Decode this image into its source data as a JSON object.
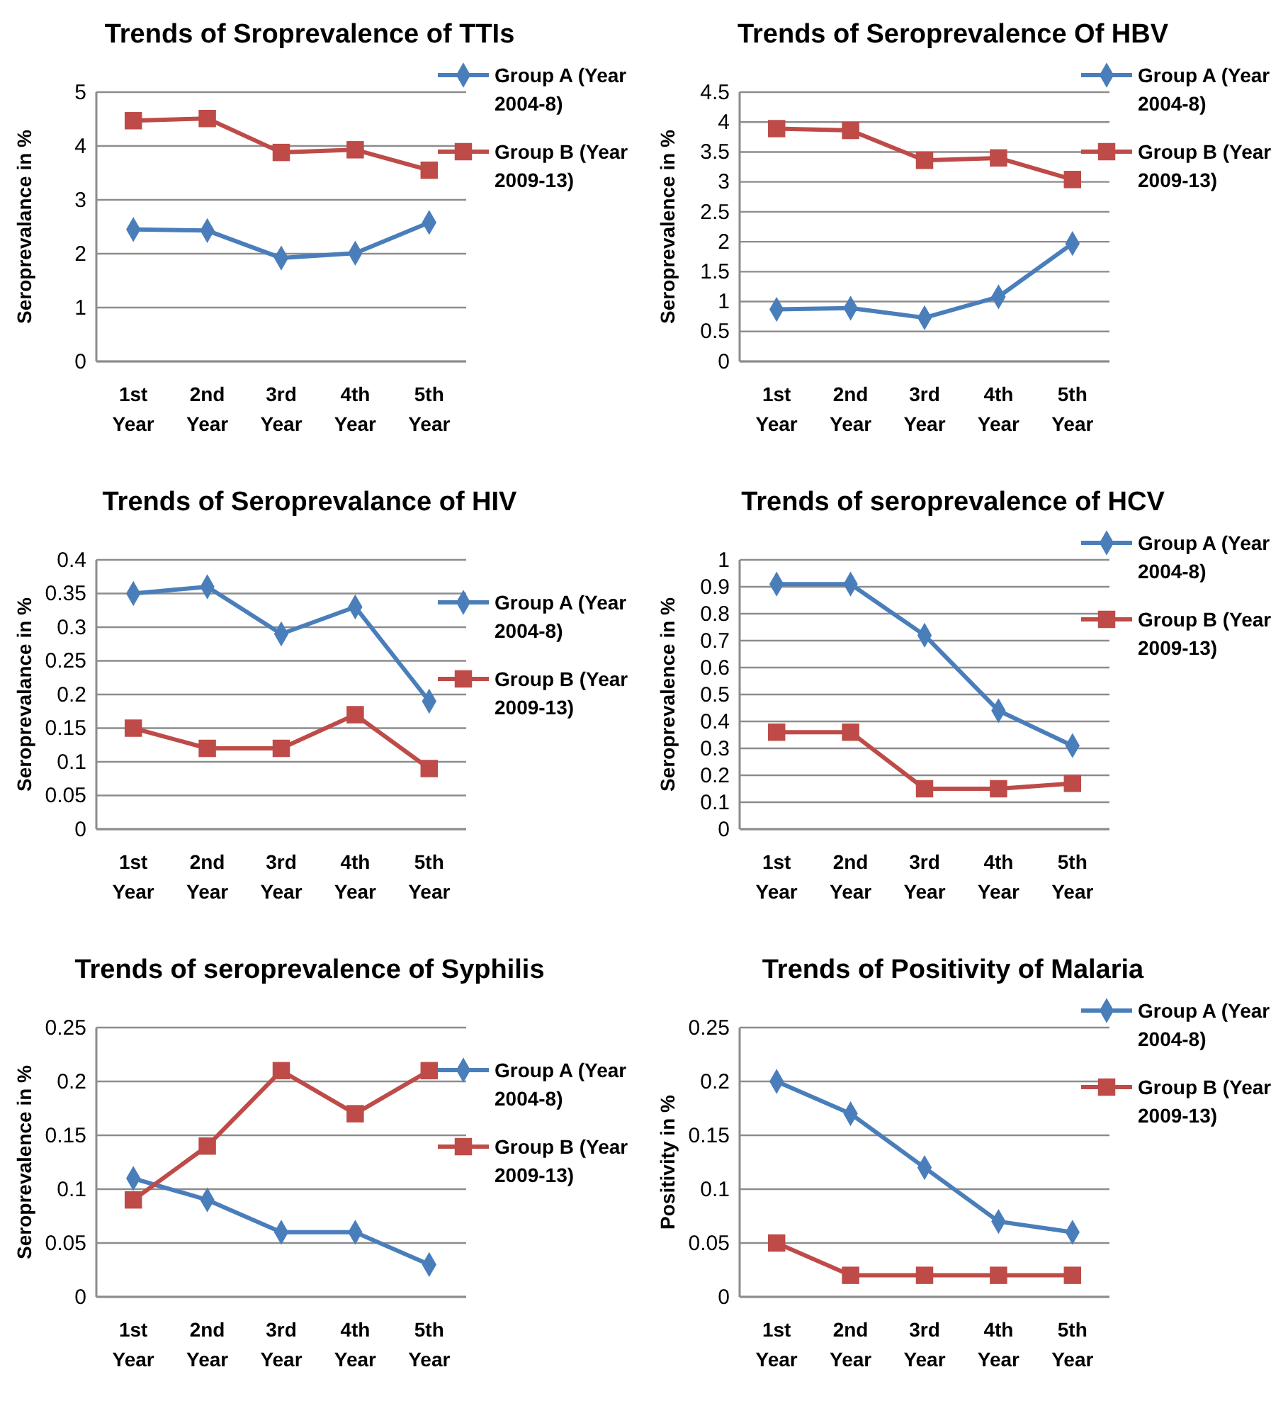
{
  "chart_data": [
    {
      "type": "line",
      "title": "Trends of Sroprevalence of TTIs",
      "ylabel": "Seroprevalance in %",
      "categories": [
        "1st Year",
        "2nd Year",
        "3rd Year",
        "4th Year",
        "5th Year"
      ],
      "ylim": [
        0,
        5
      ],
      "yticks": [
        0,
        1,
        2,
        3,
        4,
        5
      ],
      "grid": "y",
      "legend": "top right",
      "series": [
        {
          "name": "Group A (Year 2004-8)",
          "color": "#4a7ebb",
          "marker": "diamond",
          "values": [
            2.45,
            2.43,
            1.92,
            2.01,
            2.58
          ]
        },
        {
          "name": "Group B (Year 2009-13)",
          "color": "#be4b48",
          "marker": "square",
          "values": [
            4.47,
            4.51,
            3.88,
            3.93,
            3.55
          ]
        }
      ]
    },
    {
      "type": "line",
      "title": "Trends of Seroprevalence Of HBV",
      "ylabel": "Seroprevalence in %",
      "categories": [
        "1st Year",
        "2nd Year",
        "3rd Year",
        "4th Year",
        "5th Year"
      ],
      "ylim": [
        0,
        4.5
      ],
      "yticks": [
        0,
        0.5,
        1,
        1.5,
        2,
        2.5,
        3,
        3.5,
        4,
        4.5
      ],
      "grid": "y",
      "legend": "top right",
      "series": [
        {
          "name": "Group A (Year 2004-8)",
          "color": "#4a7ebb",
          "marker": "diamond",
          "values": [
            0.87,
            0.89,
            0.73,
            1.08,
            1.97
          ]
        },
        {
          "name": "Group B (Year 2009-13)",
          "color": "#be4b48",
          "marker": "square",
          "values": [
            3.89,
            3.86,
            3.36,
            3.4,
            3.04
          ]
        }
      ]
    },
    {
      "type": "line",
      "title": "Trends of Seroprevalance of HIV",
      "ylabel": "Seroprevalance in %",
      "categories": [
        "1st Year",
        "2nd Year",
        "3rd Year",
        "4th Year",
        "5th Year"
      ],
      "ylim": [
        0,
        0.4
      ],
      "yticks": [
        0,
        0.05,
        0.1,
        0.15,
        0.2,
        0.25,
        0.3,
        0.35,
        0.4
      ],
      "grid": "y",
      "legend": "right",
      "series": [
        {
          "name": "Group A (Year 2004-8)",
          "color": "#4a7ebb",
          "marker": "diamond",
          "values": [
            0.35,
            0.36,
            0.29,
            0.33,
            0.19
          ]
        },
        {
          "name": "Group B (Year 2009-13)",
          "color": "#be4b48",
          "marker": "square",
          "values": [
            0.15,
            0.12,
            0.12,
            0.17,
            0.09
          ]
        }
      ]
    },
    {
      "type": "line",
      "title": "Trends of seroprevalence of HCV",
      "ylabel": "Seroprevalence in %",
      "categories": [
        "1st Year",
        "2nd Year",
        "3rd Year",
        "4th Year",
        "5th Year"
      ],
      "ylim": [
        0,
        1
      ],
      "yticks": [
        0,
        0.1,
        0.2,
        0.3,
        0.4,
        0.5,
        0.6,
        0.7,
        0.8,
        0.9,
        1
      ],
      "grid": "y",
      "legend": "top right",
      "series": [
        {
          "name": "Group A (Year 2004-8)",
          "color": "#4a7ebb",
          "marker": "diamond",
          "values": [
            0.91,
            0.91,
            0.72,
            0.44,
            0.31
          ]
        },
        {
          "name": "Group B (Year 2009-13)",
          "color": "#be4b48",
          "marker": "square",
          "values": [
            0.36,
            0.36,
            0.15,
            0.15,
            0.17
          ]
        }
      ]
    },
    {
      "type": "line",
      "title": "Trends of seroprevalence of Syphilis",
      "ylabel": "Seroprevalence in %",
      "categories": [
        "1st Year",
        "2nd Year",
        "3rd Year",
        "4th Year",
        "5th Year"
      ],
      "ylim": [
        0,
        0.25
      ],
      "yticks": [
        0,
        0.05,
        0.1,
        0.15,
        0.2,
        0.25
      ],
      "grid": "y",
      "legend": "right",
      "series": [
        {
          "name": "Group A (Year 2004-8)",
          "color": "#4a7ebb",
          "marker": "diamond",
          "values": [
            0.11,
            0.09,
            0.06,
            0.06,
            0.03
          ]
        },
        {
          "name": "Group B (Year 2009-13)",
          "color": "#be4b48",
          "marker": "square",
          "values": [
            0.09,
            0.14,
            0.21,
            0.17,
            0.21
          ]
        }
      ]
    },
    {
      "type": "line",
      "title": "Trends of Positivity of Malaria",
      "ylabel": "Positivity in %",
      "categories": [
        "1st Year",
        "2nd Year",
        "3rd Year",
        "4th Year",
        "5th Year"
      ],
      "ylim": [
        0,
        0.25
      ],
      "yticks": [
        0,
        0.05,
        0.1,
        0.15,
        0.2,
        0.25
      ],
      "grid": "y",
      "legend": "top right",
      "series": [
        {
          "name": "Group A (Year 2004-8)",
          "color": "#4a7ebb",
          "marker": "diamond",
          "values": [
            0.2,
            0.17,
            0.12,
            0.07,
            0.06
          ]
        },
        {
          "name": "Group B (Year 2009-13)",
          "color": "#be4b48",
          "marker": "square",
          "values": [
            0.05,
            0.02,
            0.02,
            0.02,
            0.02
          ]
        }
      ]
    }
  ]
}
